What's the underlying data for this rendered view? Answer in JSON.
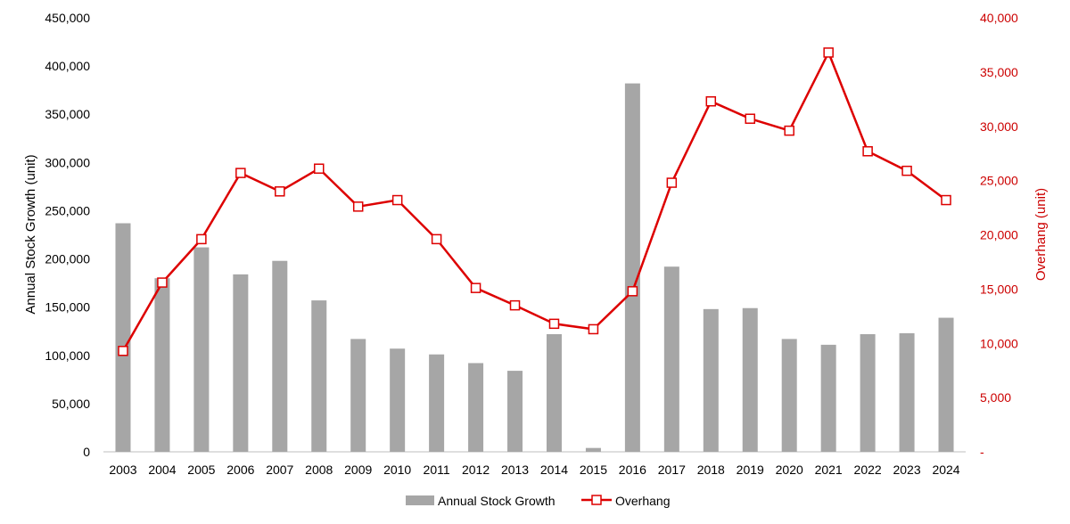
{
  "chart_data": {
    "type": "bar+line",
    "categories": [
      "2003",
      "2004",
      "2005",
      "2006",
      "2007",
      "2008",
      "2009",
      "2010",
      "2011",
      "2012",
      "2013",
      "2014",
      "2015",
      "2016",
      "2017",
      "2018",
      "2019",
      "2020",
      "2021",
      "2022",
      "2023",
      "2024"
    ],
    "series": [
      {
        "name": "Annual Stock Growth",
        "type": "bar",
        "axis": "left",
        "color": "#a6a6a6",
        "values": [
          237000,
          180000,
          212000,
          184000,
          198000,
          157000,
          117000,
          107000,
          101000,
          92000,
          84000,
          122000,
          4000,
          382000,
          192000,
          148000,
          149000,
          117000,
          111000,
          122000,
          123000,
          139000
        ]
      },
      {
        "name": "Overhang",
        "type": "line",
        "axis": "right",
        "color": "#dd0000",
        "marker": "hollow-square",
        "values": [
          9300,
          15600,
          19600,
          25700,
          24000,
          26100,
          22600,
          23200,
          19600,
          15100,
          13500,
          11800,
          11300,
          14800,
          24800,
          32300,
          30700,
          29600,
          36800,
          27700,
          25900,
          23200
        ]
      }
    ],
    "ylabel": "Annual Stock Growth (unit)",
    "ylabel_right": "Overhang (unit)",
    "ylim": [
      0,
      450000
    ],
    "ylim_right": [
      0,
      40000
    ],
    "yticks": [
      "0",
      "50,000",
      "100,000",
      "150,000",
      "200,000",
      "250,000",
      "300,000",
      "350,000",
      "400,000",
      "450,000"
    ],
    "yticks_right": [
      "-",
      "5,000",
      "10,000",
      "15,000",
      "20,000",
      "25,000",
      "30,000",
      "35,000",
      "40,000"
    ],
    "grid": false,
    "legend_position": "bottom"
  }
}
